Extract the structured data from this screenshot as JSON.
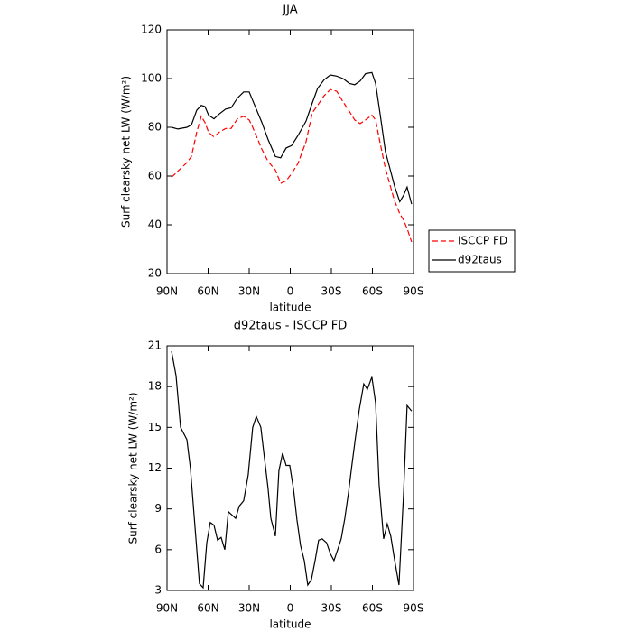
{
  "chart_data": [
    {
      "type": "line",
      "title": "JJA",
      "xlabel": "latitude",
      "ylabel": "Surf clearsky net LW (W/m²)",
      "x": [
        86.7,
        82.1,
        75.5,
        72.2,
        68.3,
        65,
        62.3,
        59.7,
        55.7,
        51.8,
        47.2,
        43.2,
        38.6,
        34,
        30,
        27.4,
        20.8,
        16.2,
        10.9,
        7,
        3,
        -0.9,
        -5.5,
        -11.5,
        -16.1,
        -20,
        -24.7,
        -29.3,
        -33.9,
        -38.5,
        -43.2,
        -47.1,
        -51,
        -55,
        -59.6,
        -62.3,
        -65.5,
        -69.5,
        -73.5,
        -76.1,
        -80,
        -82.7,
        -85.3,
        -88.6
      ],
      "series": [
        {
          "name": "ISCCP FD",
          "color": "#ff0000",
          "linestyle": "dashed",
          "values": [
            59.5,
            62,
            65.5,
            68,
            78,
            84.5,
            82,
            78,
            76,
            78,
            79.5,
            79.5,
            83.5,
            84.5,
            83,
            80,
            71,
            66,
            62.5,
            57,
            58,
            61,
            65,
            74,
            86,
            89,
            93,
            95.5,
            94.8,
            90.5,
            86.5,
            83,
            81.5,
            83,
            85,
            83,
            74,
            63,
            55,
            50,
            44.5,
            42,
            38.5,
            33
          ]
        },
        {
          "name": "d92taus",
          "color": "#000000",
          "linestyle": "solid",
          "values": [
            80,
            79.3,
            80,
            81,
            87,
            89,
            88.5,
            85,
            83.5,
            85.5,
            87.5,
            88,
            92,
            94.5,
            94.5,
            91,
            82,
            75,
            68,
            67.5,
            71.5,
            72.5,
            76.5,
            82.5,
            90,
            96,
            99.5,
            101.5,
            101,
            100,
            98,
            97.5,
            99,
            102,
            102.5,
            98,
            86,
            70,
            61.5,
            56,
            49.5,
            52,
            55.5,
            48.5
          ]
        }
      ],
      "xlim": [
        90,
        -90
      ],
      "xticks": [
        {
          "value": 90,
          "label": "90N"
        },
        {
          "value": 60,
          "label": "60N"
        },
        {
          "value": 30,
          "label": "30N"
        },
        0,
        {
          "value": -30,
          "label": "30S"
        },
        {
          "value": -60,
          "label": "60S"
        },
        {
          "value": -90,
          "label": "90S"
        }
      ],
      "ylim": [
        20,
        120
      ],
      "yticks": [
        20,
        40,
        60,
        80,
        100,
        120
      ],
      "legend": "right"
    },
    {
      "type": "line",
      "title": "d92taus - ISCCP FD",
      "xlabel": "latitude",
      "ylabel": "Surf clearsky net LW (W/m²)",
      "x": [
        86.7,
        83.4,
        80.1,
        75.5,
        72.9,
        66.3,
        63.6,
        61,
        58.4,
        55.7,
        53.1,
        50.5,
        47.8,
        45.2,
        39.9,
        37.3,
        34,
        30.7,
        27.4,
        24.8,
        21.5,
        19.5,
        16.2,
        14.2,
        10.9,
        8.3,
        5.6,
        3,
        0.4,
        -2.3,
        -4.9,
        -7.5,
        -10.2,
        -12.8,
        -15.4,
        -18.1,
        -20.7,
        -23.3,
        -26.6,
        -29.3,
        -31.9,
        -34.6,
        -37.2,
        -39.8,
        -42.5,
        -45.1,
        -47.7,
        -50.4,
        -53.7,
        -56.3,
        -59.6,
        -62.3,
        -64.9,
        -68.2,
        -70.8,
        -73.4,
        -76.1,
        -79.4,
        -82.7,
        -85.3,
        -88.6
      ],
      "series": [
        {
          "color": "#000000",
          "linestyle": "solid",
          "values": [
            20.6,
            18.8,
            15,
            14.1,
            12,
            3.5,
            3.2,
            6.5,
            8,
            7.8,
            6.7,
            6.9,
            6,
            8.8,
            8.3,
            9.2,
            9.6,
            11.5,
            15,
            15.8,
            15,
            13.3,
            10.5,
            8.3,
            7,
            11.8,
            13.1,
            12.2,
            12.2,
            10.5,
            8.2,
            6.3,
            5.2,
            3.4,
            3.8,
            5.2,
            6.7,
            6.8,
            6.5,
            5.7,
            5.2,
            6,
            6.8,
            8.3,
            10.2,
            12.3,
            14.3,
            16.3,
            18.2,
            17.8,
            18.7,
            16.8,
            10.8,
            6.8,
            7.9,
            7,
            5.3,
            3.4,
            10,
            16.6,
            16.2
          ]
        }
      ],
      "xlim": [
        90,
        -90
      ],
      "xticks": [
        {
          "value": 90,
          "label": "90N"
        },
        {
          "value": 60,
          "label": "60N"
        },
        {
          "value": 30,
          "label": "30N"
        },
        0,
        {
          "value": -30,
          "label": "30S"
        },
        {
          "value": -60,
          "label": "60S"
        },
        {
          "value": -90,
          "label": "90S"
        }
      ],
      "ylim": [
        3,
        21
      ],
      "yticks": [
        3,
        6,
        9,
        12,
        15,
        18,
        21
      ]
    }
  ]
}
